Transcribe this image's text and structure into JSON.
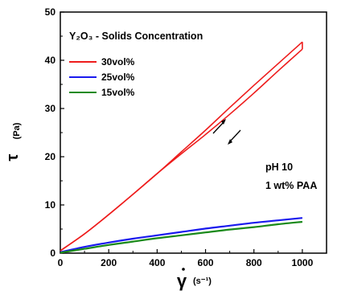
{
  "chart_data": {
    "type": "line",
    "title": "",
    "xlabel_symbol": "γ",
    "xlabel_unit": "(s⁻¹)",
    "ylabel_symbol": "τ",
    "ylabel_unit": "(Pa)",
    "xlim": [
      0,
      1100
    ],
    "ylim": [
      0,
      50
    ],
    "x_ticks": [
      0,
      200,
      400,
      600,
      800,
      1000
    ],
    "y_ticks": [
      0,
      10,
      20,
      30,
      40,
      50
    ],
    "legend_title": "Y₂O₃ - Solids Concentration",
    "legend_position": "top-left",
    "annotations": [
      "pH 10",
      "1 wt% PAA"
    ],
    "series": [
      {
        "name": "30vol%",
        "color": "#ee1c1c",
        "x": [
          0,
          100,
          200,
          300,
          400,
          500,
          600,
          700,
          800,
          900,
          1000
        ],
        "values": [
          0.5,
          4.0,
          8.0,
          12.2,
          16.5,
          20.8,
          25.0,
          29.5,
          34.0,
          38.5,
          43.0
        ],
        "hysteresis_up": [
          0.5,
          4.0,
          8.0,
          12.2,
          16.5,
          21.0,
          25.5,
          30.2,
          34.8,
          39.3,
          43.8
        ],
        "hysteresis_down": [
          0.5,
          4.0,
          8.0,
          12.2,
          16.5,
          20.6,
          24.6,
          28.8,
          33.2,
          37.8,
          42.3
        ]
      },
      {
        "name": "25vol%",
        "color": "#1a1aee",
        "x": [
          0,
          100,
          200,
          300,
          400,
          500,
          600,
          700,
          800,
          900,
          1000
        ],
        "values": [
          0.2,
          1.3,
          2.2,
          3.0,
          3.7,
          4.4,
          5.1,
          5.7,
          6.3,
          6.8,
          7.3
        ]
      },
      {
        "name": "15vol%",
        "color": "#1a8a1a",
        "x": [
          0,
          100,
          200,
          300,
          400,
          500,
          600,
          700,
          800,
          900,
          1000
        ],
        "values": [
          0.1,
          0.9,
          1.7,
          2.4,
          3.1,
          3.7,
          4.3,
          4.9,
          5.4,
          6.0,
          6.5
        ]
      }
    ]
  }
}
